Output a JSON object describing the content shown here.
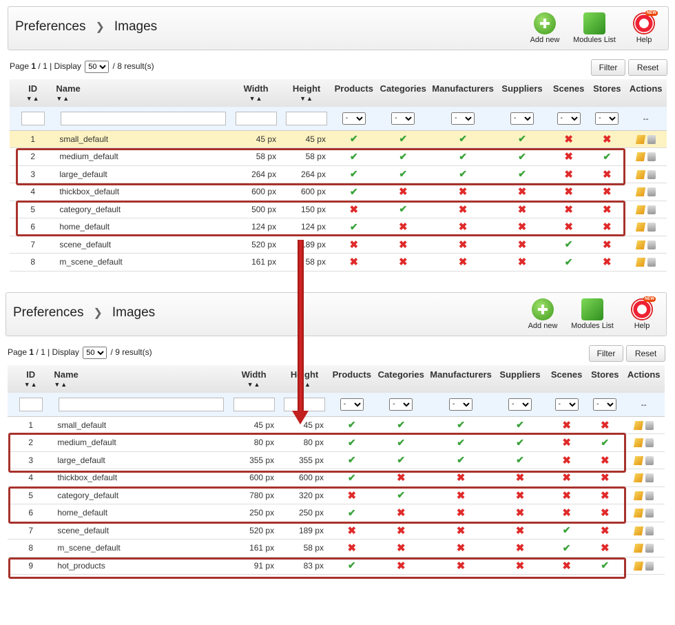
{
  "breadcrumb": {
    "parent": "Preferences",
    "current": "Images"
  },
  "toolbar": {
    "add_new": "Add new",
    "modules_list": "Modules List",
    "help": "Help"
  },
  "buttons": {
    "filter": "Filter",
    "reset": "Reset"
  },
  "columns": {
    "id": "ID",
    "name": "Name",
    "width": "Width",
    "height": "Height",
    "products": "Products",
    "categories": "Categories",
    "manufacturers": "Manufacturers",
    "suppliers": "Suppliers",
    "scenes": "Scenes",
    "stores": "Stores",
    "actions": "Actions",
    "actions_filter": "--"
  },
  "filter_select_value": "-",
  "panels": [
    {
      "pager": {
        "page": "1",
        "pages": "1",
        "display": "50",
        "results": "8"
      },
      "rows": [
        {
          "id": "1",
          "name": "small_default",
          "width": "45 px",
          "height": "45 px",
          "flags": [
            true,
            true,
            true,
            true,
            false,
            false
          ]
        },
        {
          "id": "2",
          "name": "medium_default",
          "width": "58 px",
          "height": "58 px",
          "flags": [
            true,
            true,
            true,
            true,
            false,
            true
          ]
        },
        {
          "id": "3",
          "name": "large_default",
          "width": "264 px",
          "height": "264 px",
          "flags": [
            true,
            true,
            true,
            true,
            false,
            false
          ]
        },
        {
          "id": "4",
          "name": "thickbox_default",
          "width": "600 px",
          "height": "600 px",
          "flags": [
            true,
            false,
            false,
            false,
            false,
            false
          ]
        },
        {
          "id": "5",
          "name": "category_default",
          "width": "500 px",
          "height": "150 px",
          "flags": [
            false,
            true,
            false,
            false,
            false,
            false
          ]
        },
        {
          "id": "6",
          "name": "home_default",
          "width": "124 px",
          "height": "124 px",
          "flags": [
            true,
            false,
            false,
            false,
            false,
            false
          ]
        },
        {
          "id": "7",
          "name": "scene_default",
          "width": "520 px",
          "height": "189 px",
          "flags": [
            false,
            false,
            false,
            false,
            true,
            false
          ]
        },
        {
          "id": "8",
          "name": "m_scene_default",
          "width": "161 px",
          "height": "58 px",
          "flags": [
            false,
            false,
            false,
            false,
            true,
            false
          ]
        }
      ]
    },
    {
      "pager": {
        "page": "1",
        "pages": "1",
        "display": "50",
        "results": "9"
      },
      "rows": [
        {
          "id": "1",
          "name": "small_default",
          "width": "45 px",
          "height": "45 px",
          "flags": [
            true,
            true,
            true,
            true,
            false,
            false
          ]
        },
        {
          "id": "2",
          "name": "medium_default",
          "width": "80 px",
          "height": "80 px",
          "flags": [
            true,
            true,
            true,
            true,
            false,
            true
          ]
        },
        {
          "id": "3",
          "name": "large_default",
          "width": "355 px",
          "height": "355 px",
          "flags": [
            true,
            true,
            true,
            true,
            false,
            false
          ]
        },
        {
          "id": "4",
          "name": "thickbox_default",
          "width": "600 px",
          "height": "600 px",
          "flags": [
            true,
            false,
            false,
            false,
            false,
            false
          ]
        },
        {
          "id": "5",
          "name": "category_default",
          "width": "780 px",
          "height": "320 px",
          "flags": [
            false,
            true,
            false,
            false,
            false,
            false
          ]
        },
        {
          "id": "6",
          "name": "home_default",
          "width": "250 px",
          "height": "250 px",
          "flags": [
            true,
            false,
            false,
            false,
            false,
            false
          ]
        },
        {
          "id": "7",
          "name": "scene_default",
          "width": "520 px",
          "height": "189 px",
          "flags": [
            false,
            false,
            false,
            false,
            true,
            false
          ]
        },
        {
          "id": "8",
          "name": "m_scene_default",
          "width": "161 px",
          "height": "58 px",
          "flags": [
            false,
            false,
            false,
            false,
            true,
            false
          ]
        },
        {
          "id": "9",
          "name": "hot_products",
          "width": "91 px",
          "height": "83 px",
          "flags": [
            true,
            false,
            false,
            false,
            false,
            true
          ]
        }
      ]
    }
  ]
}
